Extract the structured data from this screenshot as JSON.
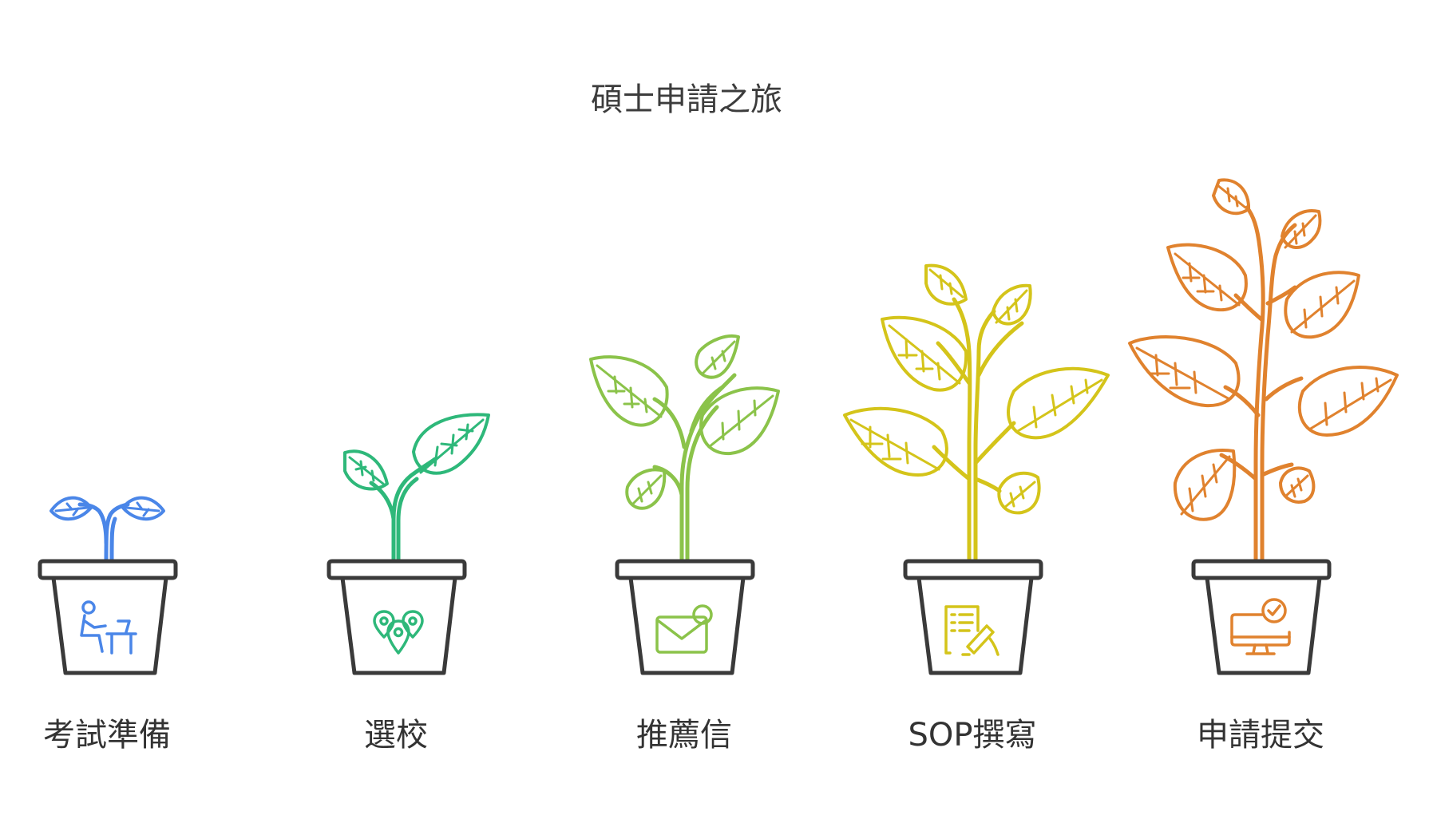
{
  "title": "碩士申請之旅",
  "stages": [
    {
      "label": "考試準備",
      "icon": "person-at-desk-icon",
      "color": "#4a86e8"
    },
    {
      "label": "選校",
      "icon": "location-pins-icon",
      "color": "#2eb87a"
    },
    {
      "label": "推薦信",
      "icon": "envelope-icon",
      "color": "#8bc34a"
    },
    {
      "label": "SOP撰寫",
      "icon": "document-writing-icon",
      "color": "#d4c41a"
    },
    {
      "label": "申請提交",
      "icon": "computer-check-icon",
      "color": "#e0822e"
    }
  ]
}
